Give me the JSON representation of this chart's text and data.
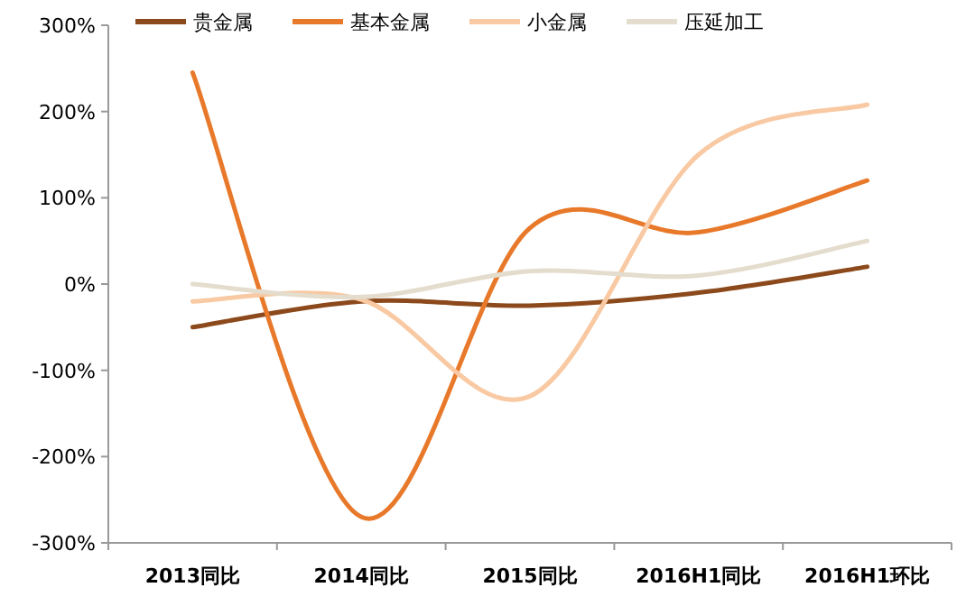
{
  "chart_data": {
    "type": "line",
    "categories": [
      "2013同比",
      "2014同比",
      "2015同比",
      "2016H1同比",
      "2016H1环比"
    ],
    "series": [
      {
        "name": "贵金属",
        "color": "#8c4a1c",
        "values": [
          -50,
          -20,
          -25,
          -10,
          20
        ]
      },
      {
        "name": "基本金属",
        "color": "#e8792a",
        "values": [
          245,
          -270,
          65,
          60,
          120
        ]
      },
      {
        "name": "小金属",
        "color": "#f8c9a2",
        "values": [
          -20,
          -18,
          -130,
          150,
          208
        ]
      },
      {
        "name": "压延加工",
        "color": "#e4dccd",
        "values": [
          0,
          -15,
          15,
          10,
          50
        ]
      }
    ],
    "ylim": [
      -300,
      300
    ],
    "yticks": [
      {
        "value": -300,
        "label": "-300%"
      },
      {
        "value": -200,
        "label": "-200%"
      },
      {
        "value": -100,
        "label": "-100%"
      },
      {
        "value": 0,
        "label": "0%"
      },
      {
        "value": 100,
        "label": "100%"
      },
      {
        "value": 200,
        "label": "200%"
      },
      {
        "value": 300,
        "label": "300%"
      }
    ],
    "legend": "top",
    "grid": false,
    "marker": "none",
    "line_style": "solid"
  }
}
